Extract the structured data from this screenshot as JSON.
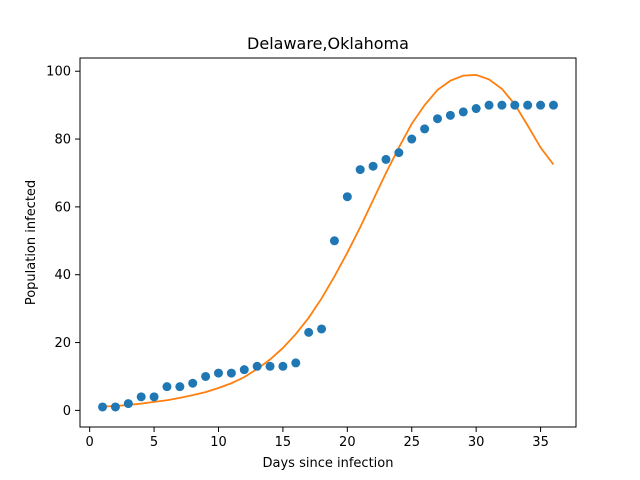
{
  "chart_data": {
    "type": "scatter",
    "title": "Delaware,Oklahoma",
    "xlabel": "Days since infection",
    "ylabel": "Population infected",
    "xlim": [
      -0.75,
      37.75
    ],
    "ylim": [
      -4.9,
      103.9
    ],
    "xticks": [
      0,
      5,
      10,
      15,
      20,
      25,
      30,
      35
    ],
    "yticks": [
      0,
      20,
      40,
      60,
      80,
      100
    ],
    "grid": false,
    "legend": "none",
    "series": [
      {
        "kind": "scatter",
        "color": "#1f77b4",
        "x": [
          1,
          2,
          3,
          4,
          5,
          6,
          7,
          8,
          9,
          10,
          11,
          12,
          13,
          14,
          15,
          16,
          17,
          18,
          19,
          20,
          21,
          22,
          23,
          24,
          25,
          26,
          27,
          28,
          29,
          30,
          31,
          32,
          33,
          34,
          35,
          36
        ],
        "y": [
          1,
          1,
          2,
          4,
          4,
          7,
          7,
          8,
          10,
          11,
          11,
          12,
          13,
          13,
          13,
          14,
          23,
          24,
          50,
          63,
          71,
          72,
          74,
          76,
          80,
          83,
          86,
          87,
          88,
          89,
          90,
          90,
          90,
          90,
          90,
          90
        ]
      },
      {
        "kind": "line",
        "color": "#ff7f0e",
        "x": [
          1,
          2,
          3,
          4,
          5,
          6,
          7,
          8,
          9,
          10,
          11,
          12,
          13,
          14,
          15,
          16,
          17,
          18,
          19,
          20,
          21,
          22,
          23,
          24,
          25,
          26,
          27,
          28,
          29,
          30,
          31,
          32,
          33,
          34,
          35,
          36
        ],
        "y": [
          1.1,
          1.3,
          1.6,
          2.0,
          2.5,
          3.0,
          3.7,
          4.5,
          5.4,
          6.6,
          8.0,
          9.8,
          12.2,
          15.0,
          18.4,
          22.5,
          27.3,
          33.0,
          39.5,
          46.5,
          54.0,
          62.0,
          70.0,
          77.5,
          84.5,
          90.0,
          94.5,
          97.2,
          98.7,
          98.9,
          97.6,
          94.8,
          90.2,
          84.0,
          77.5,
          72.5
        ]
      }
    ]
  }
}
